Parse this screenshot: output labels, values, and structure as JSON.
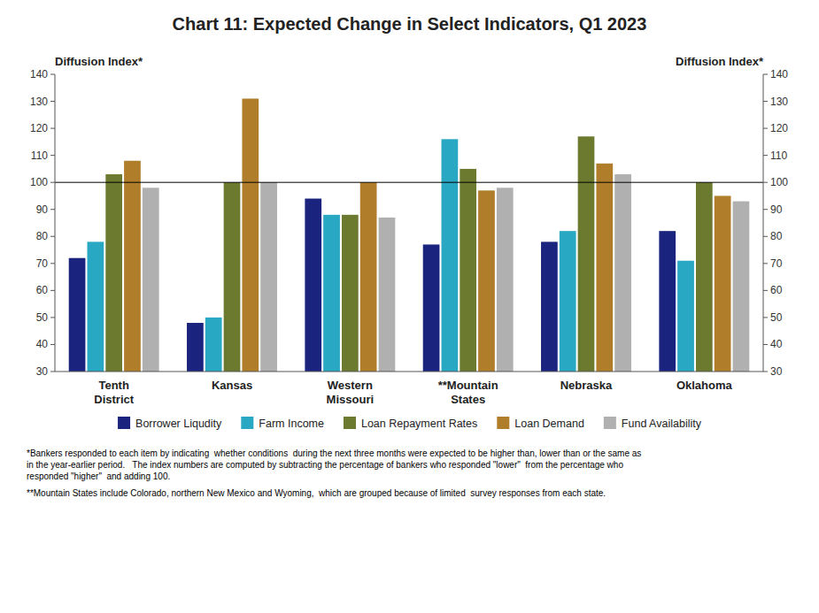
{
  "chart_data": {
    "type": "bar",
    "title": "Chart 11: Expected Change in Select Indicators, Q1 2023",
    "categories": [
      "Tenth\nDistrict",
      "Kansas",
      "Western\nMissouri",
      "**Mountain\nStates",
      "Nebraska",
      "Oklahoma"
    ],
    "series": [
      {
        "name": "Borrower Liqudity",
        "color": "#1a237e",
        "values": [
          72,
          48,
          94,
          77,
          78,
          82
        ]
      },
      {
        "name": "Farm Income",
        "color": "#29a8c4",
        "values": [
          78,
          50,
          88,
          116,
          82,
          71
        ]
      },
      {
        "name": "Loan Repayment Rates",
        "color": "#6b7a2e",
        "values": [
          103,
          100,
          88,
          105,
          117,
          100
        ]
      },
      {
        "name": "Loan Demand",
        "color": "#b07d2a",
        "values": [
          108,
          131,
          100,
          97,
          107,
          95
        ]
      },
      {
        "name": "Fund Availability",
        "color": "#b0b0b0",
        "values": [
          98,
          100,
          87,
          98,
          103,
          93
        ]
      }
    ],
    "ylabel": "Diffusion Index*",
    "y2label": "Diffusion Index*",
    "ylim": [
      30,
      140
    ],
    "yticks": [
      30,
      40,
      50,
      60,
      70,
      80,
      90,
      100,
      110,
      120,
      130,
      140
    ],
    "y2lim": [
      30,
      140
    ],
    "y2ticks": [
      30,
      40,
      50,
      60,
      70,
      80,
      90,
      100,
      110,
      120,
      130,
      140
    ],
    "baseline": 100,
    "footnotes": [
      "*Bankers responded to each item by indicating  whether conditions  during the next three months were expected to be higher than, lower than or the same as\nin the year-earlier period.   The index numbers are computed by subtracting the percentage of bankers who responded \"lower\"  from the percentage who\nresponded \"higher\"  and adding 100.",
      "**Mountain States include Colorado, northern New Mexico and Wyoming,  which are grouped because of limited  survey responses from each state."
    ],
    "grid": false,
    "legend": "bottom"
  }
}
